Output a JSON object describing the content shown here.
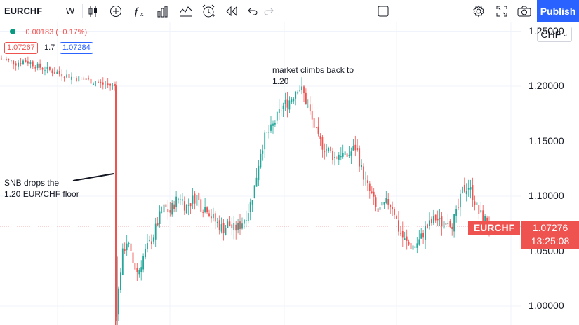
{
  "toolbar": {
    "symbol": "EURCHF",
    "interval": "W",
    "publish_label": "Publish"
  },
  "legend": {
    "change": "−0.00183 (−0.17%)",
    "bid": "1.07267",
    "spread": "1.7",
    "ask": "1.07284"
  },
  "currency_button": "CHF",
  "price_scale": {
    "ticks": [
      "1.25000",
      "1.20000",
      "1.15000",
      "1.10000",
      "1.05000",
      "1.00000"
    ],
    "last_label": "EURCHF",
    "last_price": "1.07276",
    "countdown": "13:25:08"
  },
  "annotations": {
    "snb": "SNB drops the\n1.20 EUR/CHF floor",
    "market": "market climbs back to\n1.20"
  },
  "colors": {
    "up": "#26a69a",
    "down": "#ef5350",
    "accent": "#2962ff"
  },
  "icons": [
    "compare-icon",
    "candles-icon",
    "add-icon",
    "indicators-icon",
    "bar-chart-icon",
    "templates-icon",
    "alert-icon",
    "replay-icon",
    "undo-icon",
    "redo-icon",
    "fullscreen-box-icon",
    "settings-icon",
    "fullscreen-icon",
    "camera-icon"
  ],
  "chart_data": {
    "type": "candlestick",
    "ylim": [
      0.985,
      1.255
    ],
    "last_price": 1.07276,
    "series_close": [
      1.225,
      1.223,
      1.221,
      1.223,
      1.222,
      1.218,
      1.216,
      1.214,
      1.212,
      1.21,
      1.208,
      1.207,
      1.206,
      1.204,
      1.202,
      1.201,
      1.2,
      0.995,
      1.045,
      1.06,
      1.04,
      1.03,
      1.045,
      1.055,
      1.065,
      1.08,
      1.09,
      1.085,
      1.095,
      1.1,
      1.09,
      1.095,
      1.1,
      1.09,
      1.09,
      1.08,
      1.075,
      1.07,
      1.075,
      1.07,
      1.072,
      1.08,
      1.09,
      1.11,
      1.14,
      1.155,
      1.16,
      1.17,
      1.18,
      1.185,
      1.19,
      1.2,
      1.195,
      1.18,
      1.165,
      1.15,
      1.145,
      1.14,
      1.135,
      1.14,
      1.135,
      1.14,
      1.145,
      1.125,
      1.11,
      1.1,
      1.085,
      1.09,
      1.095,
      1.09,
      1.07,
      1.06,
      1.055,
      1.055,
      1.06,
      1.07,
      1.075,
      1.08,
      1.075,
      1.08,
      1.075,
      1.085,
      1.105,
      1.11,
      1.1,
      1.085,
      1.08,
      1.073
    ]
  }
}
